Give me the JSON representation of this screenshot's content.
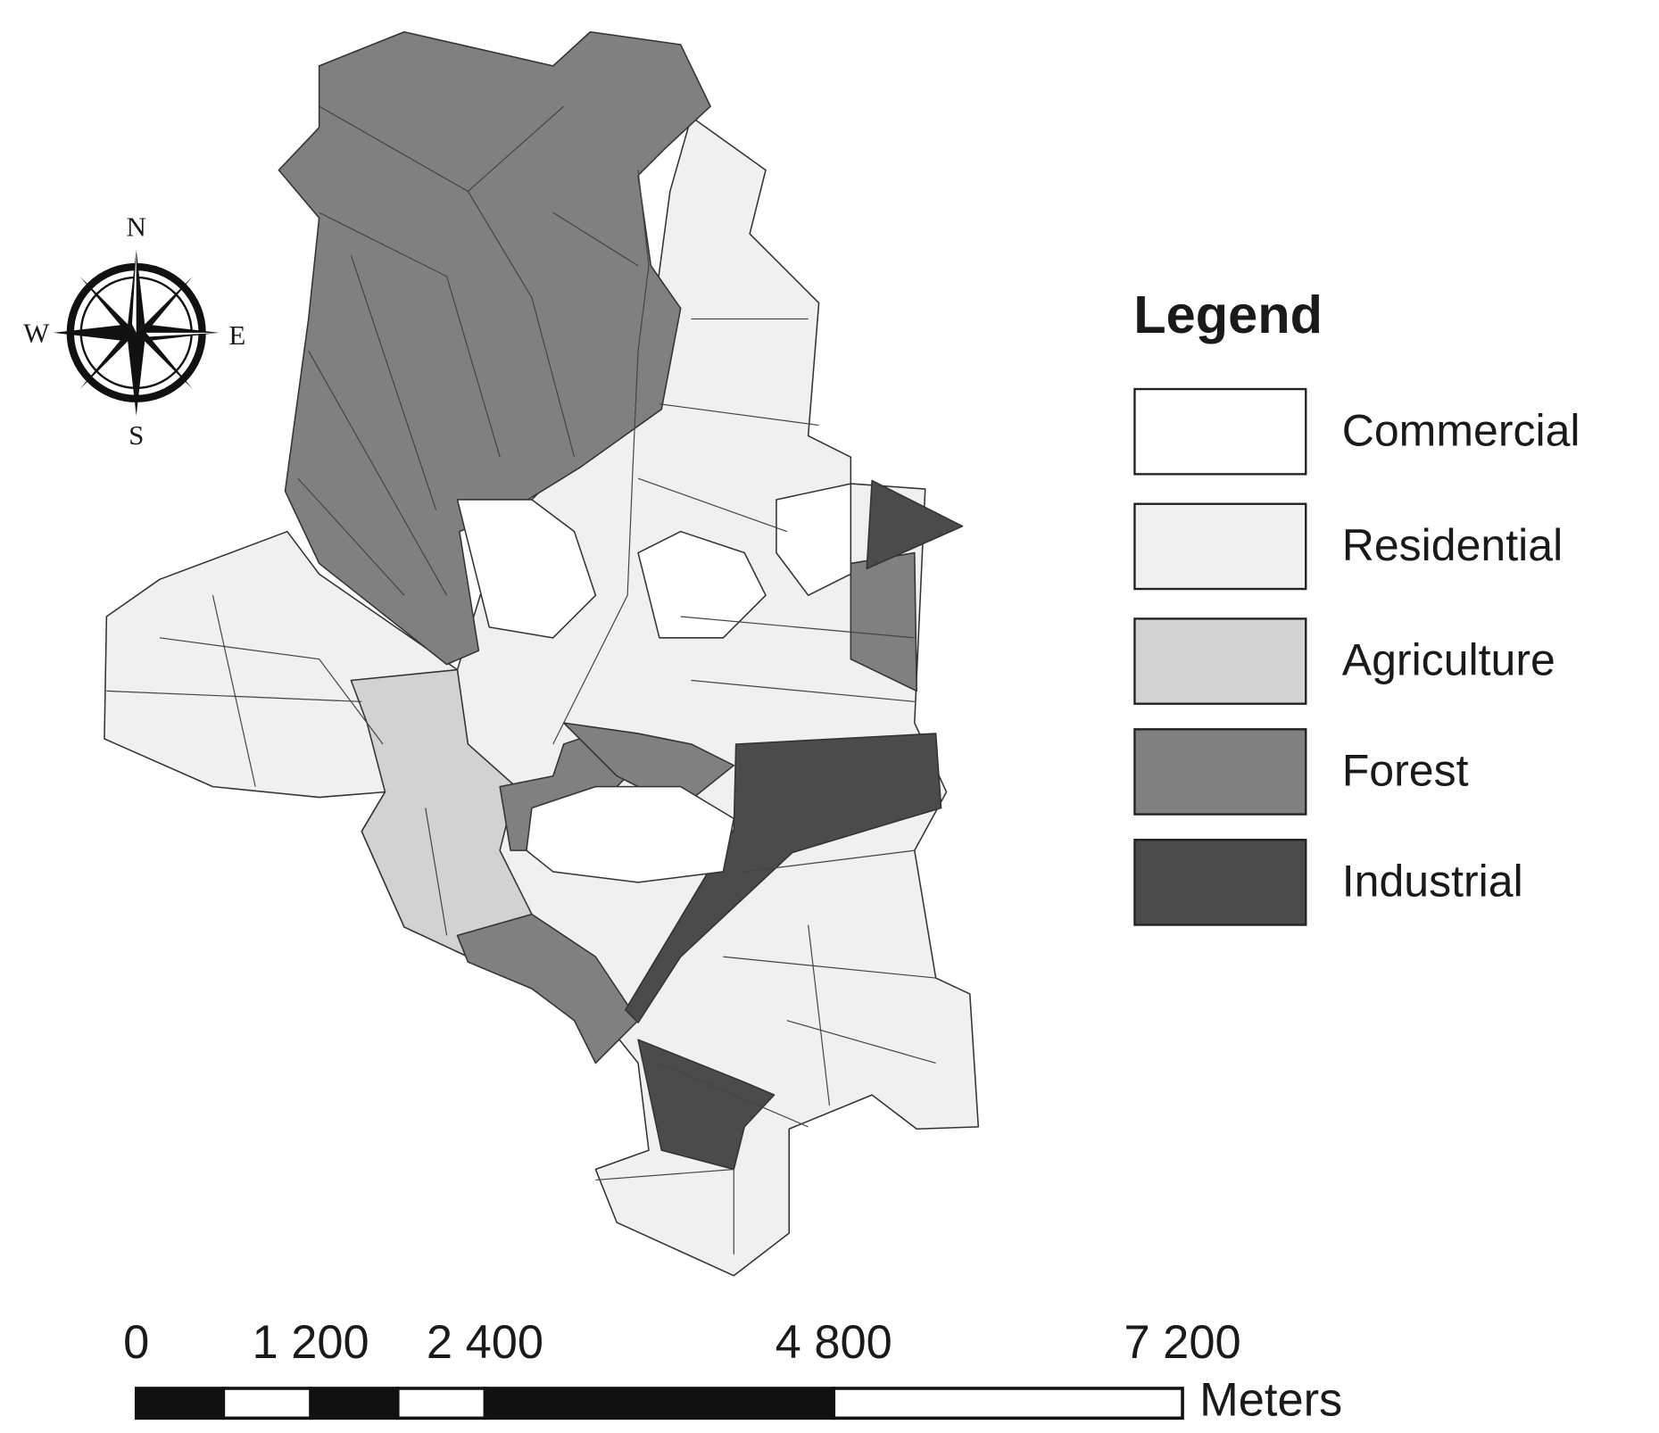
{
  "map": {
    "compass": {
      "north": "N",
      "south": "S",
      "east": "E",
      "west": "W"
    },
    "legend": {
      "title": "Legend",
      "items": [
        {
          "label": "Commercial",
          "color": "#ffffff"
        },
        {
          "label": "Residential",
          "color": "#f0f0f0"
        },
        {
          "label": "Agriculture",
          "color": "#d2d2d2"
        },
        {
          "label": "Forest",
          "color": "#808080"
        },
        {
          "label": "Industrial",
          "color": "#4b4b4b"
        }
      ]
    },
    "scale_bar": {
      "unit": "Meters",
      "ticks": [
        {
          "value": 0,
          "label": "0"
        },
        {
          "value": 1200,
          "label": "1 200"
        },
        {
          "value": 2400,
          "label": "2 400"
        },
        {
          "value": 4800,
          "label": "4 800"
        },
        {
          "value": 7200,
          "label": "7 200"
        }
      ]
    }
  }
}
